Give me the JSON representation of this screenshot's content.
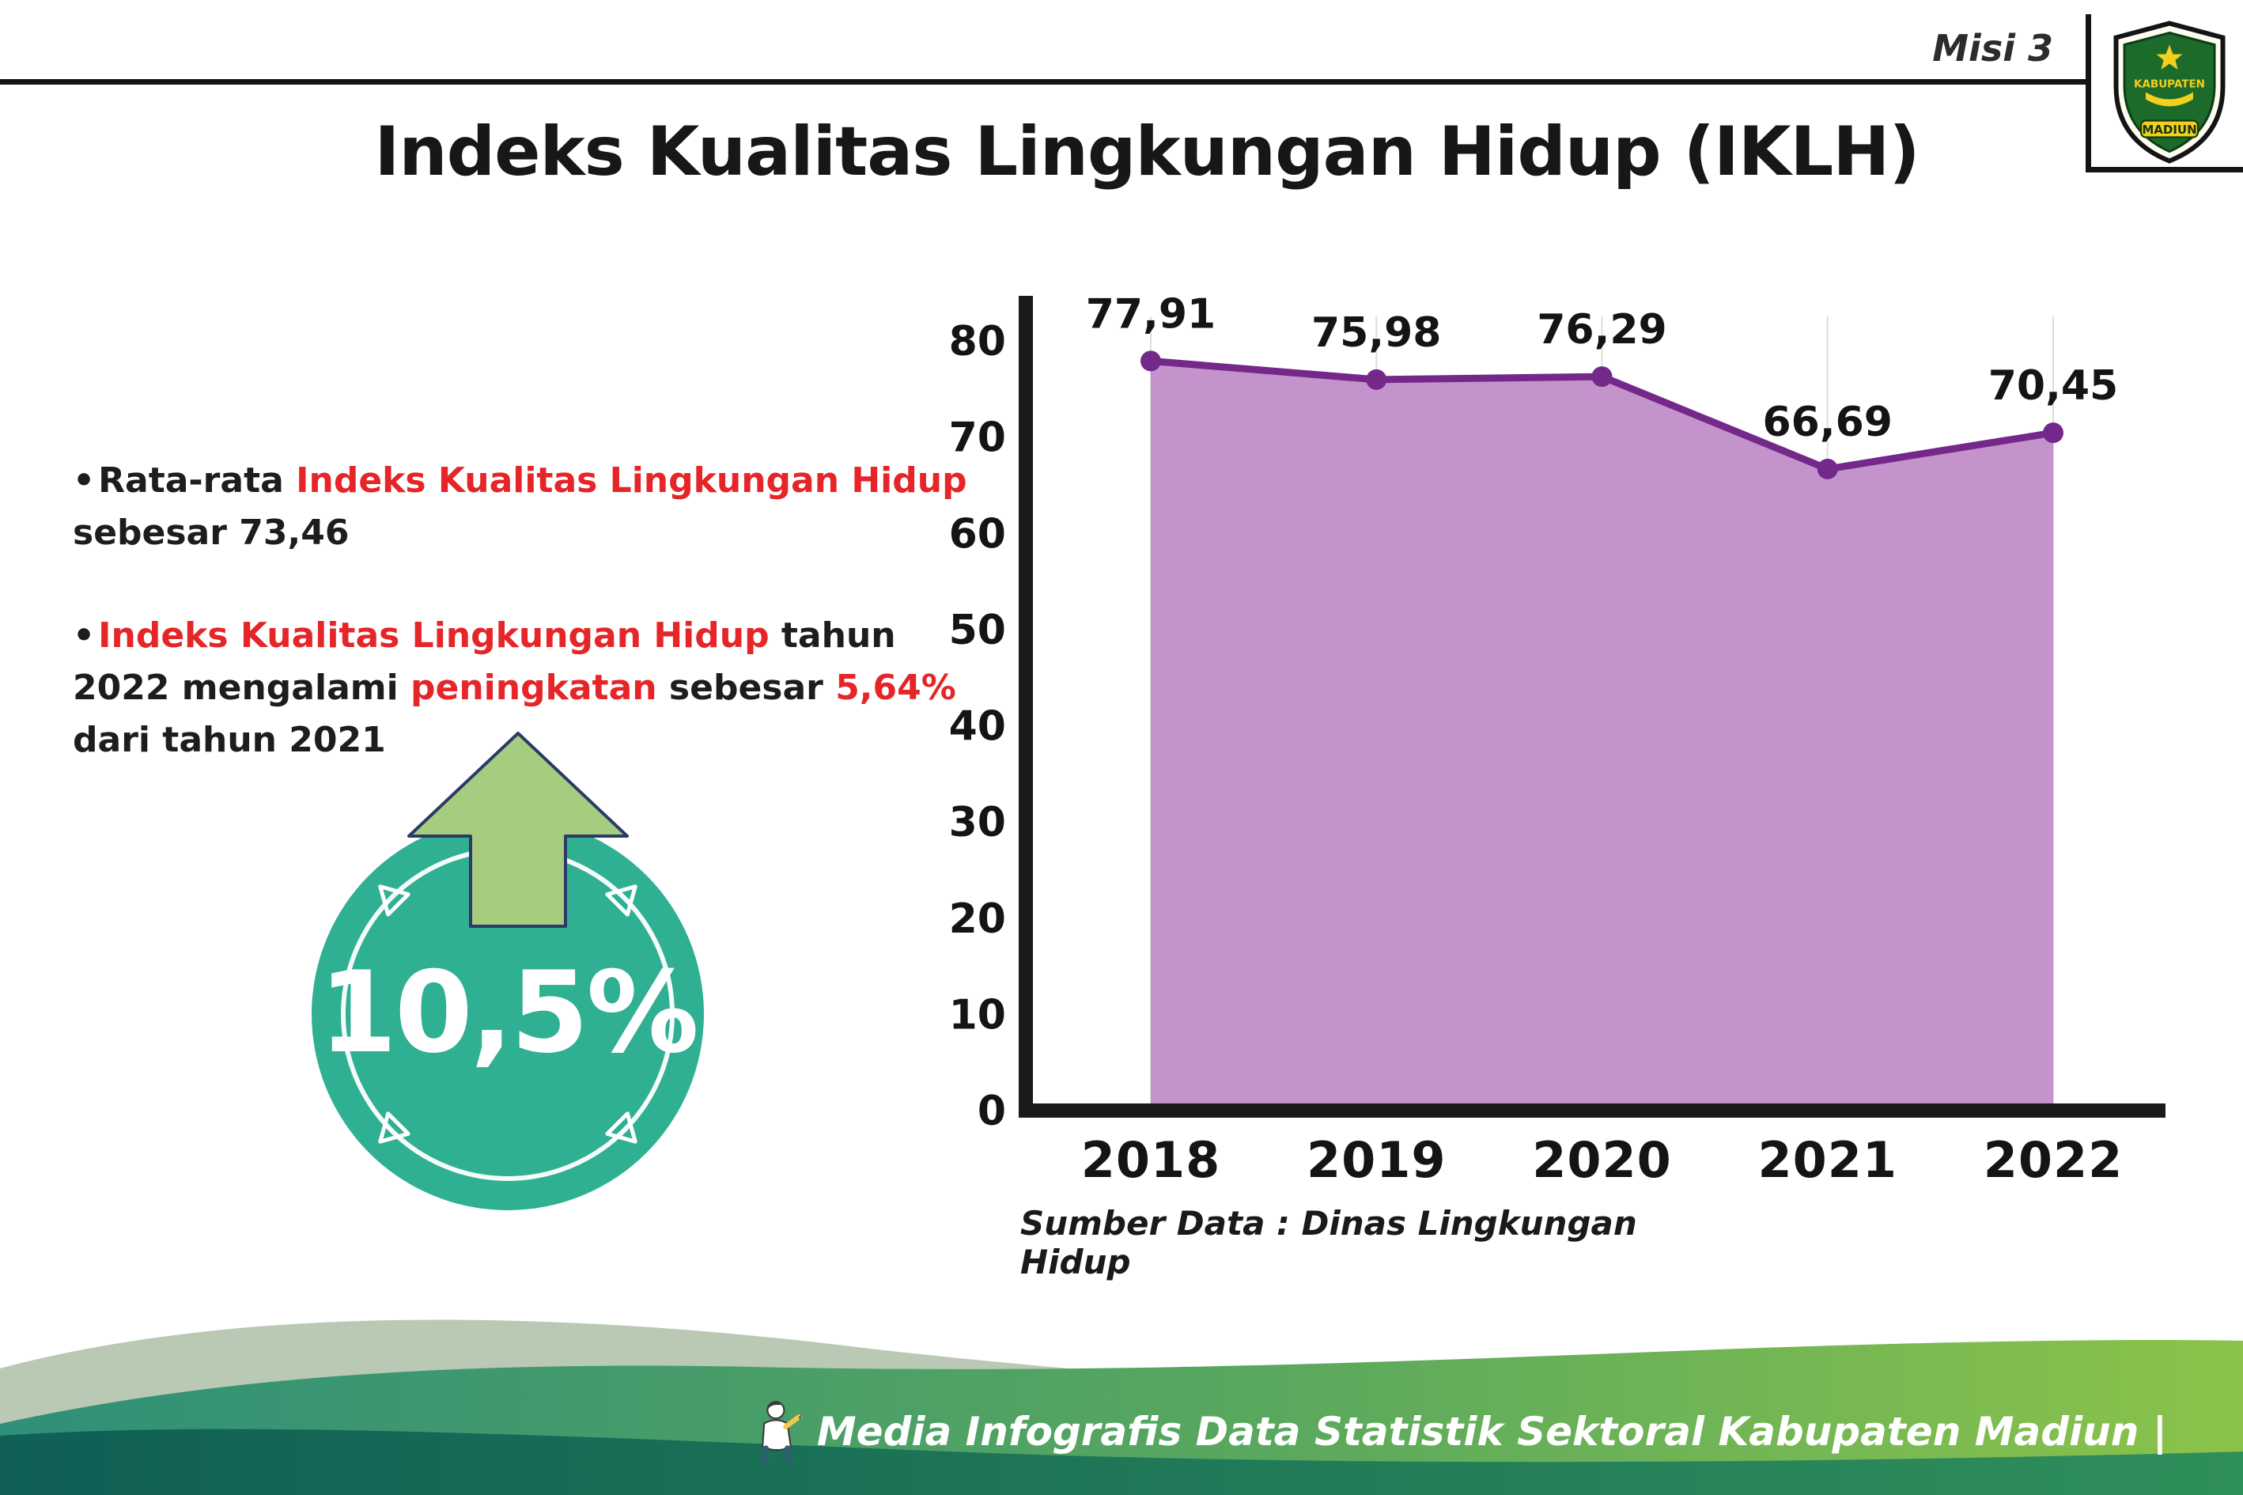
{
  "header": {
    "misi": "Misi 3",
    "title": "Indeks Kualitas Lingkungan Hidup (IKLH)",
    "logo": "kabupaten-madiun-crest-icon",
    "logo_text_top": "KABUPATEN",
    "logo_text_bottom": "MADIUN"
  },
  "bullets": [
    {
      "segments": [
        {
          "text": "Rata-rata "
        },
        {
          "text": "Indeks Kualitas Lingkungan Hidup",
          "highlight": true
        },
        {
          "text": " sebesar 73,46"
        }
      ]
    },
    {
      "segments": [
        {
          "text": "Indeks Kualitas Lingkungan Hidup",
          "highlight": true
        },
        {
          "text": " tahun 2022 mengalami "
        },
        {
          "text": "peningkatan",
          "highlight": true
        },
        {
          "text": " sebesar "
        },
        {
          "text": "5,64%",
          "highlight": true
        },
        {
          "text": " dari tahun 2021"
        }
      ]
    }
  ],
  "highlight_badge": {
    "value": "10,5%",
    "icon": "up-arrow-icon"
  },
  "chart_data": {
    "type": "area",
    "title": "Indeks Kualitas Lingkungan Hidup (IKLH)",
    "categories": [
      "2018",
      "2019",
      "2020",
      "2021",
      "2022"
    ],
    "values": [
      77.91,
      75.98,
      76.29,
      66.69,
      70.45
    ],
    "value_labels": [
      "77,91",
      "75,98",
      "76,29",
      "66,69",
      "70,45"
    ],
    "ylim": [
      0,
      80
    ],
    "yticks": [
      0,
      10,
      20,
      30,
      40,
      50,
      60,
      70,
      80
    ],
    "xlabel": "",
    "ylabel": "",
    "grid": "faint-vertical",
    "legend": "none",
    "fill_color": "#c08ac8",
    "line_color": "#74288a",
    "source": "Sumber Data : Dinas Lingkungan Hidup"
  },
  "footer": {
    "text": "Media Infografis Data Statistik Sektoral Kabupaten Madiun |",
    "icon": "mascot-icon"
  },
  "colors": {
    "accent_red": "#e52528",
    "circle_teal": "#2fb093",
    "arrow_green": "#a6cd7f",
    "chart_fill": "#c08ac8",
    "chart_line": "#74288a",
    "footer_green_start": "#2f8f78",
    "footer_green_end": "#8bc34a",
    "footer_dark": "#0f5f55"
  }
}
